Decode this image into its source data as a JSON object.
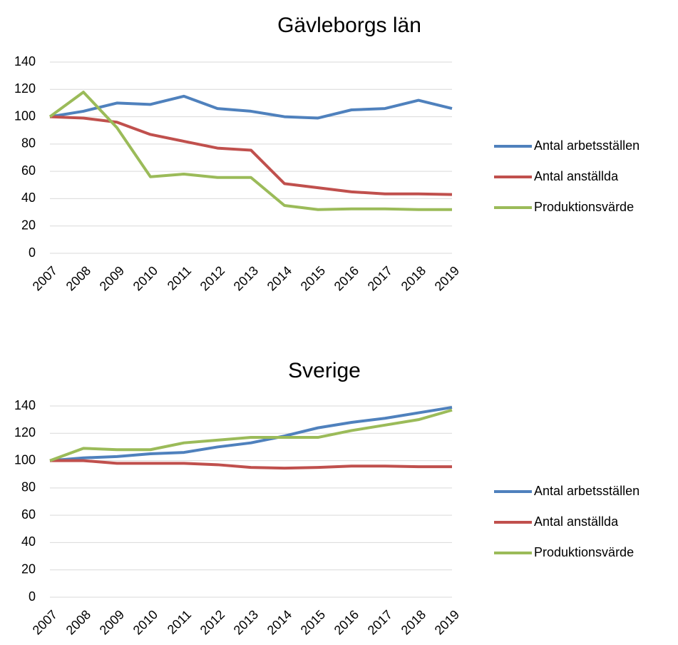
{
  "chart_data": [
    {
      "type": "line",
      "title": "Gävleborgs län",
      "categories": [
        "2007",
        "2008",
        "2009",
        "2010",
        "2011",
        "2012",
        "2013",
        "2014",
        "2015",
        "2016",
        "2017",
        "2018",
        "2019"
      ],
      "series": [
        {
          "name": "Antal arbetsställen",
          "color": "#4f81bd",
          "values": [
            100,
            104,
            110,
            109,
            115,
            106,
            104,
            100,
            99,
            105,
            106,
            112,
            106
          ]
        },
        {
          "name": "Antal anställda",
          "color": "#c0504d",
          "values": [
            100,
            99,
            96,
            87,
            82,
            77,
            75.5,
            51,
            48,
            45,
            43.5,
            43.5,
            43
          ]
        },
        {
          "name": "Produktionsvärde",
          "color": "#9bbb59",
          "values": [
            100,
            118,
            92,
            56,
            58,
            55.5,
            55.5,
            35,
            32,
            32.5,
            32.5,
            32,
            32
          ]
        }
      ],
      "ylim": [
        0,
        140
      ],
      "yticks": [
        0,
        20,
        40,
        60,
        80,
        100,
        120,
        140
      ],
      "grid": true,
      "legend": "right"
    },
    {
      "type": "line",
      "title": "Sverige",
      "categories": [
        "2007",
        "2008",
        "2009",
        "2010",
        "2011",
        "2012",
        "2013",
        "2014",
        "2015",
        "2016",
        "2017",
        "2018",
        "2019"
      ],
      "series": [
        {
          "name": "Antal arbetsställen",
          "color": "#4f81bd",
          "values": [
            100,
            102,
            103,
            105,
            106,
            110,
            113,
            118,
            124,
            128,
            131,
            135,
            139
          ]
        },
        {
          "name": "Antal anställda",
          "color": "#c0504d",
          "values": [
            100,
            100,
            98,
            98,
            98,
            97,
            95,
            94.5,
            95,
            96,
            96,
            95.5,
            95.5
          ]
        },
        {
          "name": "Produktionsvärde",
          "color": "#9bbb59",
          "values": [
            100,
            109,
            108,
            108,
            113,
            115,
            117,
            117,
            117,
            122,
            126,
            130,
            137
          ]
        }
      ],
      "ylim": [
        0,
        140
      ],
      "yticks": [
        0,
        20,
        40,
        60,
        80,
        100,
        120,
        140
      ],
      "grid": true,
      "legend": "right"
    }
  ]
}
